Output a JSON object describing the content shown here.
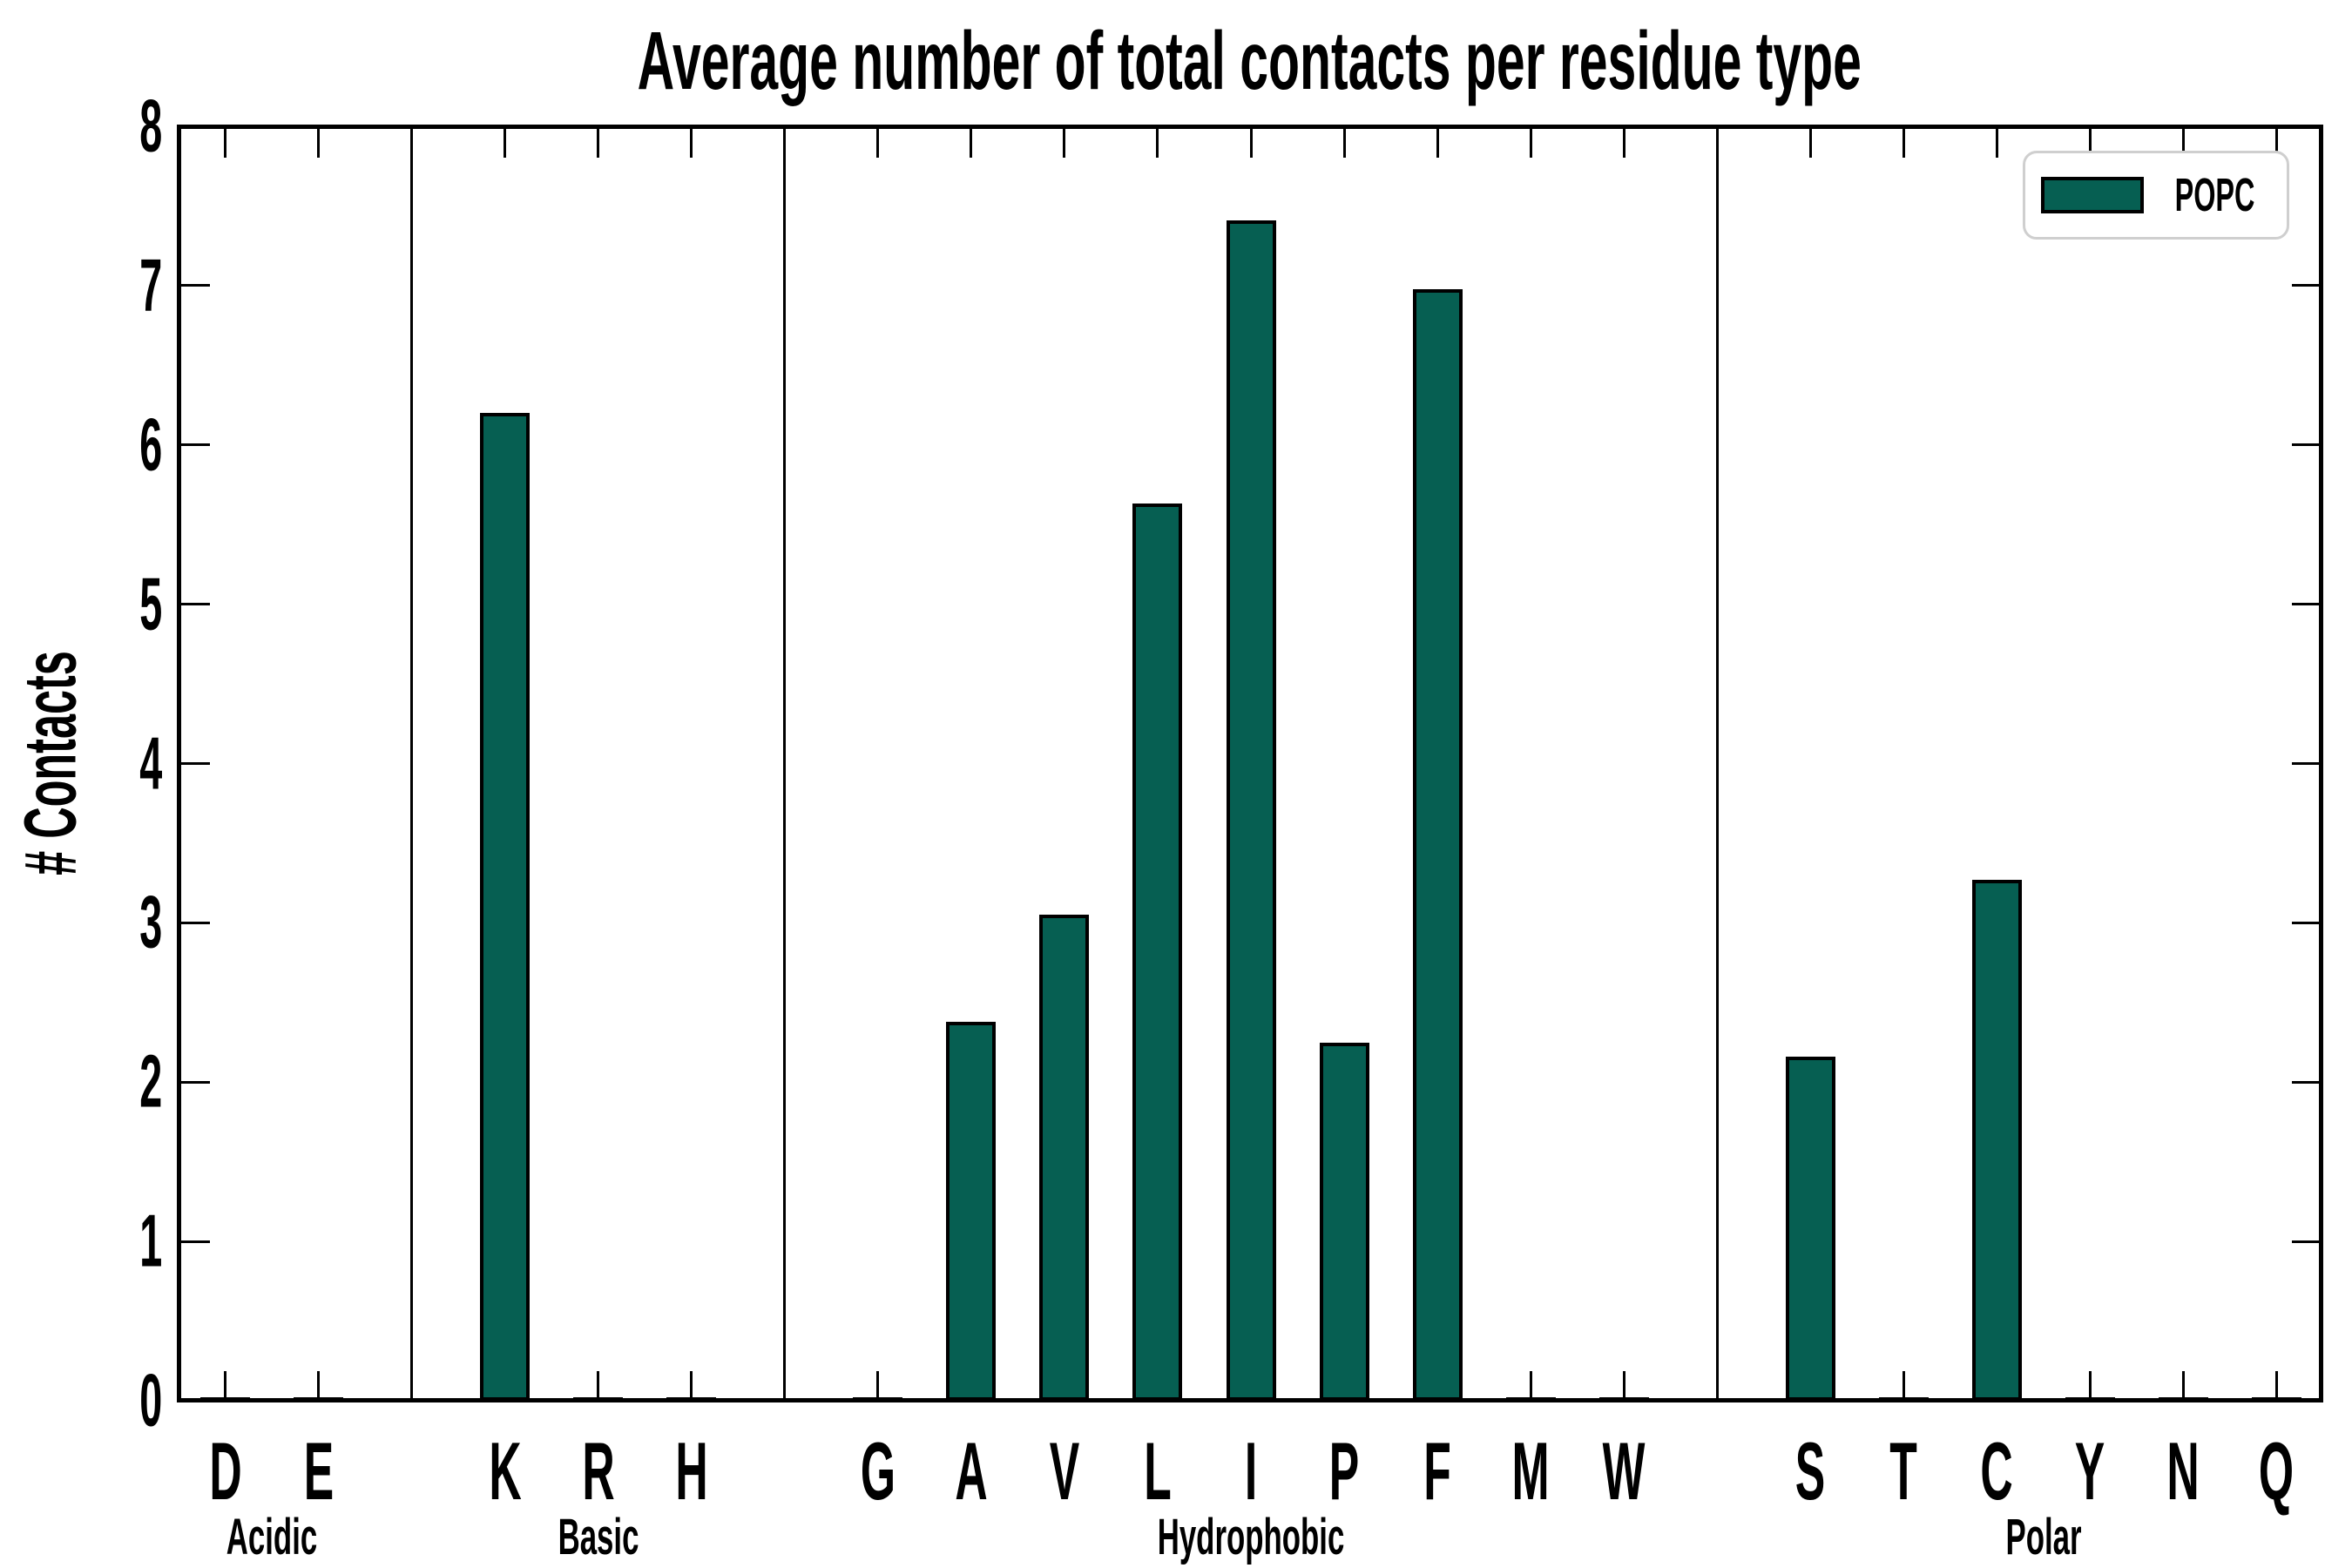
{
  "chart_data": {
    "type": "bar",
    "title": "Average number of total contacts per residue type",
    "xlabel": "",
    "ylabel": "# Contacts",
    "ylim": [
      0,
      8
    ],
    "y_ticks": [
      0,
      1,
      2,
      3,
      4,
      5,
      6,
      7,
      8
    ],
    "grid": false,
    "legend_position": "upper right",
    "legend": [
      {
        "name": "POPC",
        "color": "#065F52"
      }
    ],
    "bar_edge_color": "#000000",
    "groups": [
      {
        "label": "Acidic",
        "categories": [
          "D",
          "E"
        ],
        "values": [
          0,
          0
        ]
      },
      {
        "label": "Basic",
        "categories": [
          "K",
          "R",
          "H"
        ],
        "values": [
          6.2,
          0,
          0
        ]
      },
      {
        "label": "Hydrophobic",
        "categories": [
          "G",
          "A",
          "V",
          "L",
          "I",
          "P",
          "F",
          "M",
          "W"
        ],
        "values": [
          0,
          2.38,
          3.05,
          5.63,
          7.41,
          2.25,
          6.98,
          0,
          0
        ]
      },
      {
        "label": "Polar",
        "categories": [
          "S",
          "T",
          "C",
          "Y",
          "N",
          "Q"
        ],
        "values": [
          2.16,
          0,
          3.27,
          0,
          0,
          0
        ]
      }
    ]
  }
}
